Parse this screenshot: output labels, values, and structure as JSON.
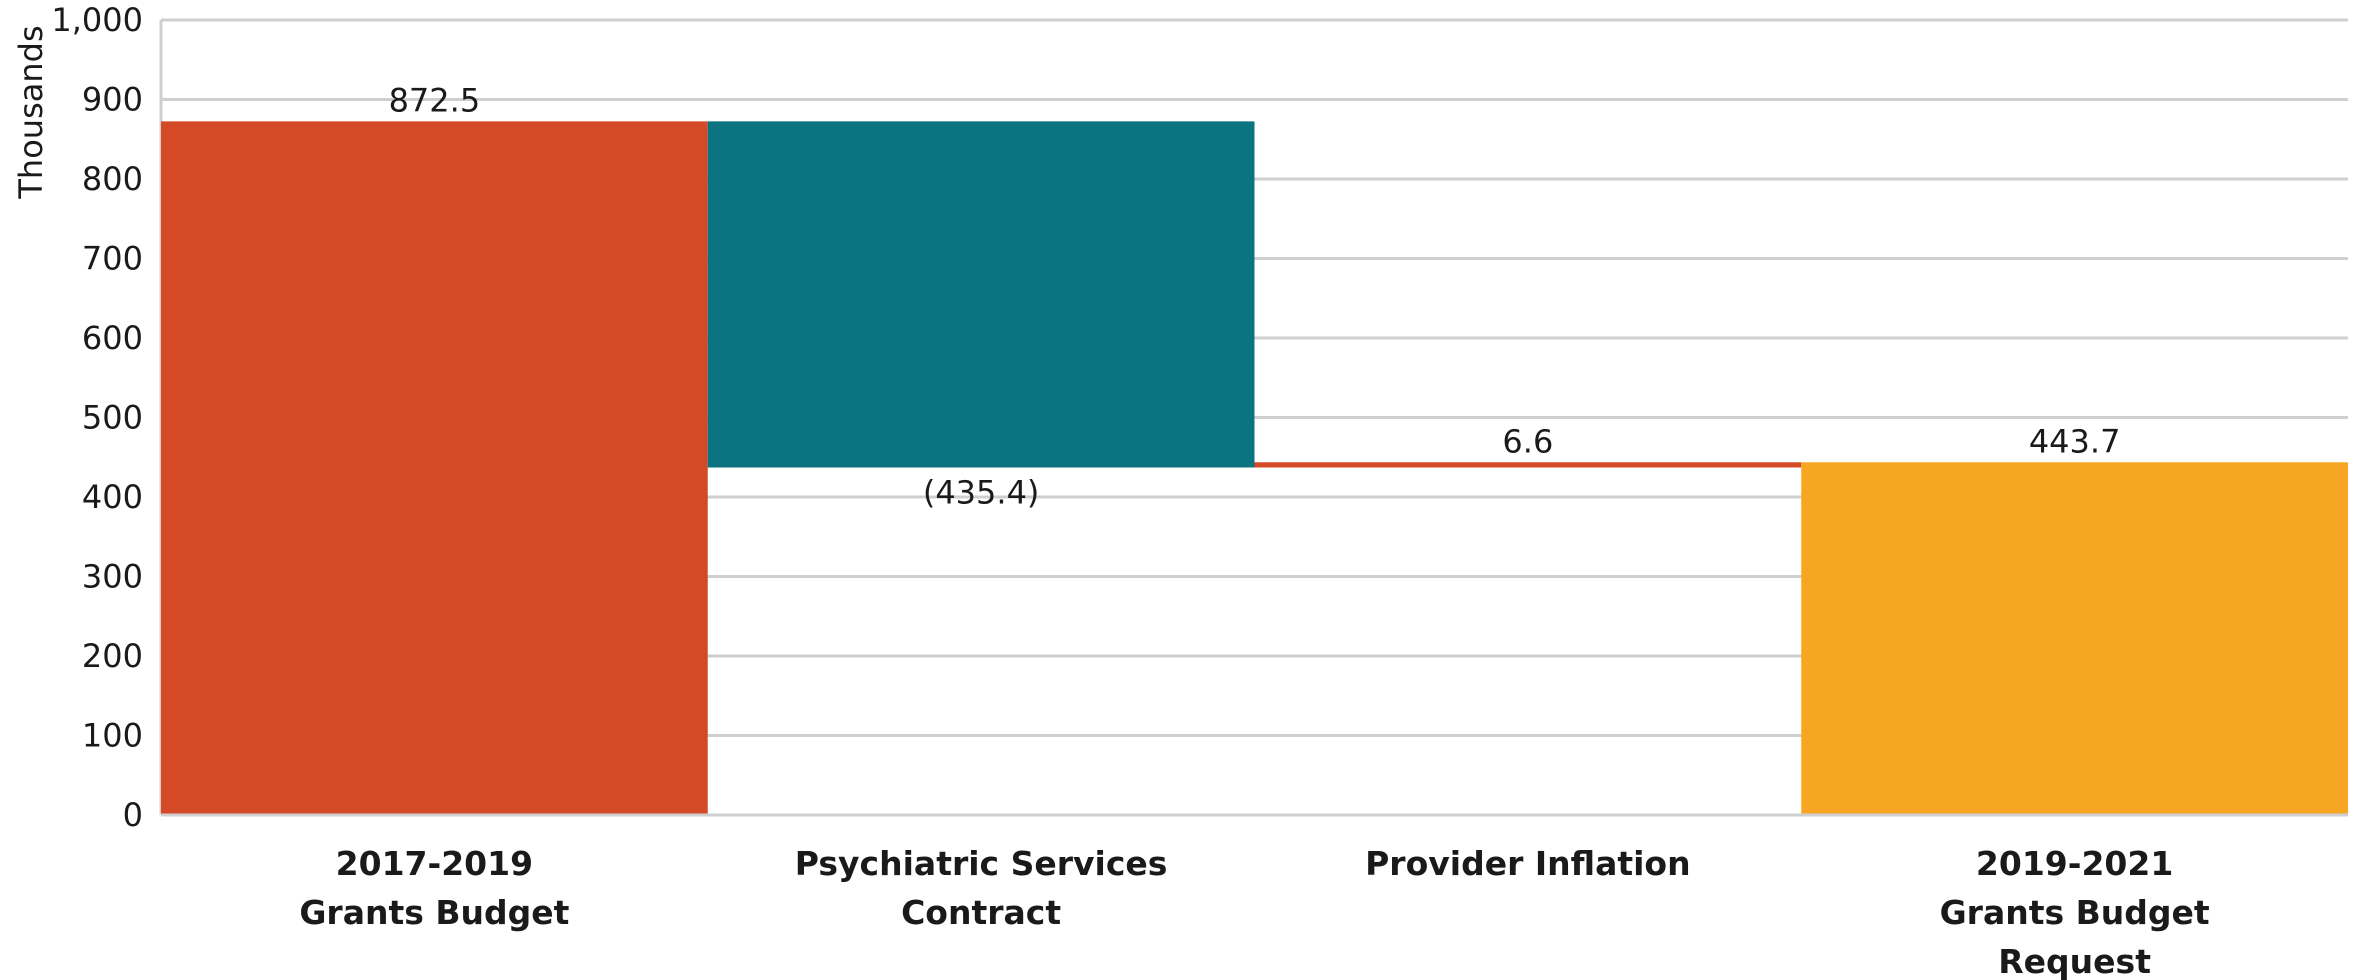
{
  "chart_data": {
    "type": "waterfall",
    "ylabel": "Thousands",
    "ylim": [
      0,
      1000
    ],
    "yticks": [
      0,
      100,
      200,
      300,
      400,
      500,
      600,
      700,
      800,
      900,
      1000
    ],
    "ytick_labels": [
      "0",
      "100",
      "200",
      "300",
      "400",
      "500",
      "600",
      "700",
      "800",
      "900",
      "1,000"
    ],
    "grid": true,
    "categories": [
      [
        "2017-2019",
        "Grants Budget"
      ],
      [
        "Psychiatric Services",
        "Contract"
      ],
      [
        "Provider Inflation"
      ],
      [
        "2019-2021",
        "Grants Budget",
        "Request"
      ]
    ],
    "steps": [
      {
        "kind": "total",
        "value": 872.5,
        "label": "872.5",
        "color": "#D44A27"
      },
      {
        "kind": "delta",
        "value": -435.4,
        "label": "(435.4)",
        "color": "#0B7480"
      },
      {
        "kind": "delta",
        "value": 6.6,
        "label": "6.6",
        "color": "#D44A27"
      },
      {
        "kind": "total",
        "value": 443.7,
        "label": "443.7",
        "color": "#F6A623"
      }
    ]
  }
}
